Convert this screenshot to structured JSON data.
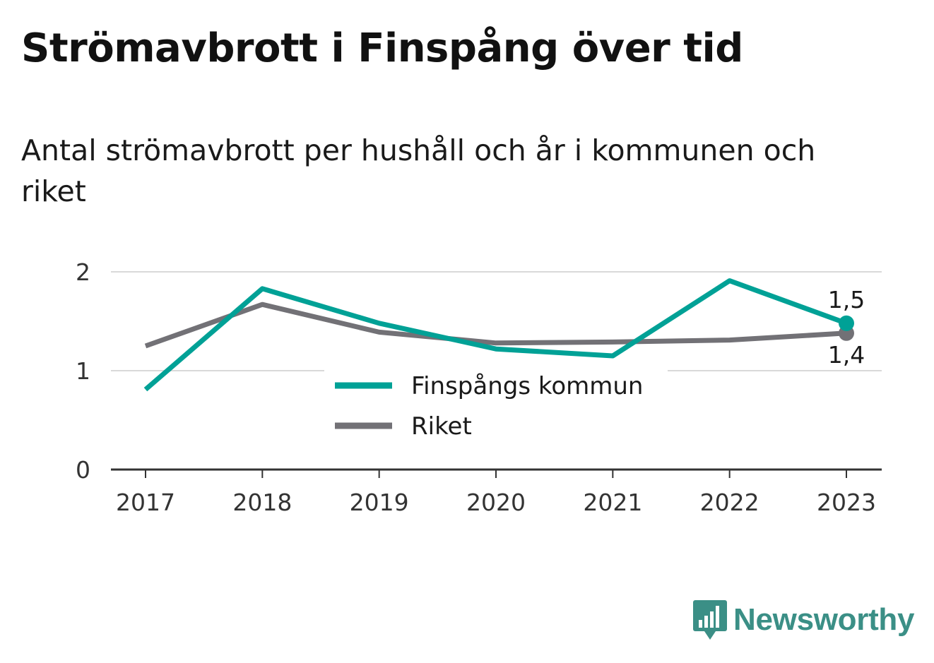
{
  "title": "Strömavbrott i Finspång över tid",
  "subtitle": "Antal strömavbrott per hushåll och år i kommunen och riket",
  "brand": {
    "name": "Newsworthy",
    "logo_icon": "bar-chart-speech-bubble-icon",
    "color": "#3b8f86"
  },
  "chart_data": {
    "type": "line",
    "categories": [
      "2017",
      "2018",
      "2019",
      "2020",
      "2021",
      "2022",
      "2023"
    ],
    "ylim": [
      0,
      2
    ],
    "yticks": [
      "0",
      "1",
      "2"
    ],
    "grid": true,
    "legend_position": "center",
    "series": [
      {
        "name": "Finspångs kommun",
        "color": "#00a196",
        "values": [
          0.81,
          1.83,
          1.48,
          1.22,
          1.15,
          1.91,
          1.48
        ],
        "end_label": "1,5"
      },
      {
        "name": "Riket",
        "color": "#727176",
        "values": [
          1.25,
          1.67,
          1.39,
          1.28,
          1.29,
          1.31,
          1.38
        ],
        "end_label": "1,4"
      }
    ]
  }
}
